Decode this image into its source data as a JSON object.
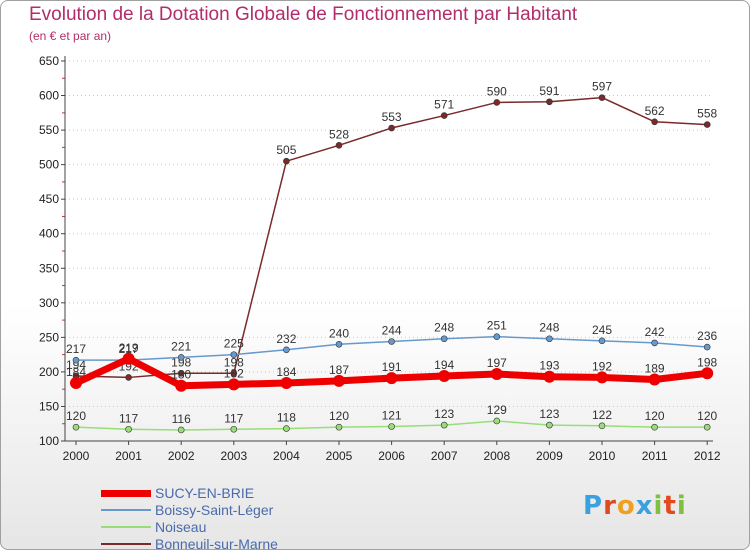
{
  "chart_data": {
    "type": "line",
    "title": "Evolution de la Dotation Globale de Fonctionnement par Habitant",
    "subtitle": "(en € et par an)",
    "xlabel": "",
    "ylabel": "",
    "ylim": [
      100,
      650
    ],
    "yticks": [
      100,
      150,
      200,
      250,
      300,
      350,
      400,
      450,
      500,
      550,
      600,
      650
    ],
    "x": [
      "2000",
      "2001",
      "2002",
      "2003",
      "2004",
      "2005",
      "2006",
      "2007",
      "2008",
      "2009",
      "2010",
      "2011",
      "2012"
    ],
    "grid": "horizontal dotted",
    "legend_position": "bottom-left",
    "series": [
      {
        "name": "Noiseau",
        "color": "#99dd77",
        "values": [
          120,
          117,
          116,
          117,
          118,
          120,
          121,
          123,
          129,
          123,
          122,
          120,
          120
        ]
      },
      {
        "name": "Bonneuil-sur-Marne",
        "color": "#7a2a2a",
        "values": [
          194,
          192,
          198,
          198,
          505,
          528,
          553,
          571,
          590,
          591,
          597,
          562,
          558
        ]
      },
      {
        "name": "Boissy-Saint-Léger",
        "color": "#6699cc",
        "values": [
          217,
          217,
          221,
          225,
          232,
          240,
          244,
          248,
          251,
          248,
          245,
          242,
          236
        ]
      },
      {
        "name": "SUCY-EN-BRIE",
        "color": "#ee0000",
        "values": [
          184,
          219,
          180,
          182,
          184,
          187,
          191,
          194,
          197,
          193,
          192,
          189,
          198
        ]
      }
    ]
  },
  "legend": [
    {
      "label": "SUCY-EN-BRIE",
      "color": "#ee0000"
    },
    {
      "label": "Boissy-Saint-Léger",
      "color": "#6699cc"
    },
    {
      "label": "Noiseau",
      "color": "#99dd77"
    },
    {
      "label": "Bonneuil-sur-Marne",
      "color": "#7a2a2a"
    }
  ],
  "logo": {
    "letters": [
      "P",
      "r",
      "o",
      "x",
      "i",
      "t",
      "i"
    ],
    "colors": [
      "#3aa0e0",
      "#e04a1e",
      "#f0a020",
      "#3aa0e0",
      "#80c040",
      "#e04a1e",
      "#80c040"
    ]
  }
}
